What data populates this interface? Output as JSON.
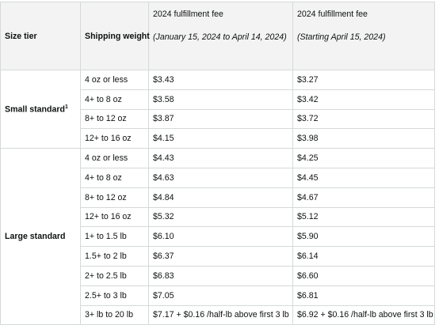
{
  "headers": {
    "size_tier": "Size tier",
    "shipping_weight": "Shipping weight",
    "fee_col1_title": "2024 fulfillment fee",
    "fee_col1_period": "(January 15, 2024 to April 14, 2024)",
    "fee_col2_title": "2024 fulfillment fee",
    "fee_col2_period": "(Starting April 15, 2024)"
  },
  "groups": [
    {
      "tier": "Small standard",
      "footnote": "1",
      "rows": [
        {
          "weight": "4 oz or less",
          "fee_jan": "$3.43",
          "fee_apr": "$3.27"
        },
        {
          "weight": "4+ to 8 oz",
          "fee_jan": "$3.58",
          "fee_apr": "$3.42"
        },
        {
          "weight": "8+ to 12 oz",
          "fee_jan": "$3.87",
          "fee_apr": "$3.72"
        },
        {
          "weight": "12+ to 16 oz",
          "fee_jan": "$4.15",
          "fee_apr": "$3.98"
        }
      ]
    },
    {
      "tier": "Large standard",
      "footnote": "",
      "rows": [
        {
          "weight": "4 oz or less",
          "fee_jan": "$4.43",
          "fee_apr": "$4.25"
        },
        {
          "weight": "4+ to 8 oz",
          "fee_jan": "$4.63",
          "fee_apr": "$4.45"
        },
        {
          "weight": "8+ to 12 oz",
          "fee_jan": "$4.84",
          "fee_apr": "$4.67"
        },
        {
          "weight": "12+ to 16 oz",
          "fee_jan": "$5.32",
          "fee_apr": "$5.12"
        },
        {
          "weight": "1+ to 1.5 lb",
          "fee_jan": "$6.10",
          "fee_apr": "$5.90"
        },
        {
          "weight": "1.5+ to 2 lb",
          "fee_jan": "$6.37",
          "fee_apr": "$6.14"
        },
        {
          "weight": "2+ to 2.5 lb",
          "fee_jan": "$6.83",
          "fee_apr": "$6.60"
        },
        {
          "weight": "2.5+ to 3 lb",
          "fee_jan": "$7.05",
          "fee_apr": "$6.81"
        },
        {
          "weight": "3+ lb to 20 lb",
          "fee_jan": "$7.17 + $0.16 /half-lb above first 3 lb",
          "fee_apr": "$6.92 + $0.16 /half-lb above first 3 lb"
        }
      ]
    }
  ]
}
